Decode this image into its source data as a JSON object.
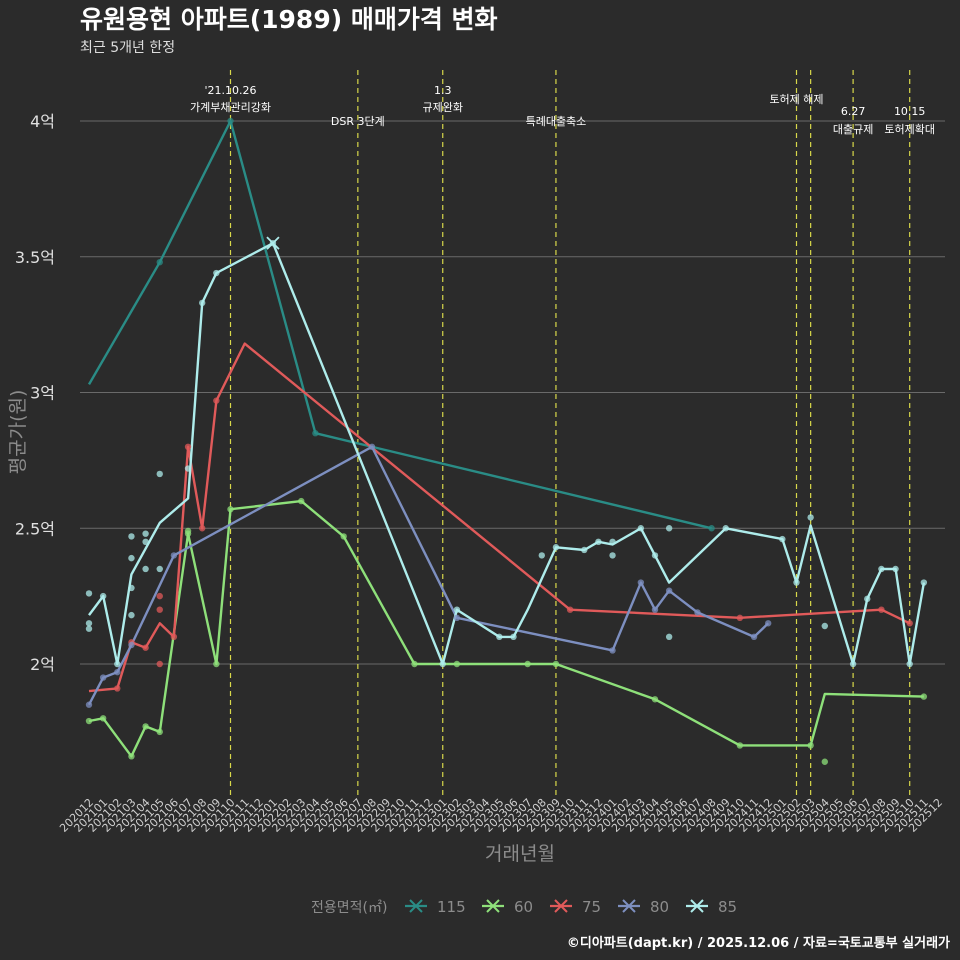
{
  "chart_data": {
    "type": "line",
    "title": "유원용현 아파트(1989) 매매가격 변화",
    "subtitle": "최근 5개년 한정",
    "xlabel": "거래년월",
    "ylabel": "평균가(원)",
    "credit": "©디아파트(dapt.kr) / 2025.12.06 / 자료=국토교통부 실거래가",
    "legend_title": "전용면적(㎡)",
    "legend_position": "bottom",
    "categories": [
      "202012",
      "202101",
      "202102",
      "202103",
      "202104",
      "202105",
      "202106",
      "202107",
      "202108",
      "202109",
      "202110",
      "202111",
      "202112",
      "202201",
      "202202",
      "202203",
      "202204",
      "202205",
      "202206",
      "202207",
      "202208",
      "202209",
      "202210",
      "202211",
      "202212",
      "202301",
      "202302",
      "202303",
      "202304",
      "202305",
      "202306",
      "202307",
      "202308",
      "202309",
      "202310",
      "202311",
      "202312",
      "202401",
      "202402",
      "202403",
      "202404",
      "202405",
      "202406",
      "202407",
      "202408",
      "202409",
      "202410",
      "202411",
      "202412",
      "202501",
      "202502",
      "202503",
      "202504",
      "202505",
      "202506",
      "202507",
      "202508",
      "202509",
      "202510",
      "202511",
      "202512"
    ],
    "y_ticks": [
      2.0,
      2.5,
      3.0,
      3.5,
      4.0
    ],
    "y_tick_labels": [
      "2억",
      "2.5억",
      "3억",
      "3.5억",
      "4억"
    ],
    "ylim": [
      1.53,
      4.25
    ],
    "y_unit": "억원",
    "series": [
      {
        "name": "115",
        "color": "#2a8c86",
        "points": [
          [
            "202012",
            3.03
          ],
          [
            "202105",
            3.48
          ],
          [
            "202110",
            4.0
          ],
          [
            "202204",
            2.85
          ],
          [
            "202408",
            2.5
          ]
        ],
        "scatter": [
          [
            "202105",
            3.48
          ],
          [
            "202110",
            4.0
          ],
          [
            "202204",
            2.85
          ],
          [
            "202408",
            2.5
          ]
        ]
      },
      {
        "name": "60",
        "color": "#8ee07a",
        "points": [
          [
            "202012",
            1.79
          ],
          [
            "202101",
            1.8
          ],
          [
            "202103",
            1.66
          ],
          [
            "202104",
            1.77
          ],
          [
            "202105",
            1.75
          ],
          [
            "202107",
            2.48
          ],
          [
            "202109",
            2.0
          ],
          [
            "202110",
            2.57
          ],
          [
            "202203",
            2.6
          ],
          [
            "202206",
            2.47
          ],
          [
            "202211",
            2.0
          ],
          [
            "202302",
            2.0
          ],
          [
            "202307",
            2.0
          ],
          [
            "202309",
            2.0
          ],
          [
            "202404",
            1.87
          ],
          [
            "202410",
            1.7
          ],
          [
            "202503",
            1.7
          ],
          [
            "202504",
            1.89
          ],
          [
            "202511",
            1.88
          ]
        ],
        "scatter": [
          [
            "202012",
            1.79
          ],
          [
            "202101",
            1.8
          ],
          [
            "202103",
            1.66
          ],
          [
            "202104",
            1.77
          ],
          [
            "202105",
            1.75
          ],
          [
            "202107",
            2.48
          ],
          [
            "202107",
            2.49
          ],
          [
            "202109",
            2.0
          ],
          [
            "202110",
            2.57
          ],
          [
            "202203",
            2.6
          ],
          [
            "202206",
            2.47
          ],
          [
            "202211",
            2.0
          ],
          [
            "202302",
            2.0
          ],
          [
            "202307",
            2.0
          ],
          [
            "202309",
            2.0
          ],
          [
            "202404",
            1.87
          ],
          [
            "202410",
            1.7
          ],
          [
            "202503",
            1.7
          ],
          [
            "202504",
            1.64
          ],
          [
            "202511",
            1.88
          ]
        ]
      },
      {
        "name": "75",
        "color": "#e05a5a",
        "points": [
          [
            "202012",
            1.9
          ],
          [
            "202102",
            1.91
          ],
          [
            "202103",
            2.08
          ],
          [
            "202104",
            2.06
          ],
          [
            "202105",
            2.15
          ],
          [
            "202106",
            2.1
          ],
          [
            "202107",
            2.8
          ],
          [
            "202108",
            2.5
          ],
          [
            "202109",
            2.97
          ],
          [
            "202111",
            3.18
          ],
          [
            "202310",
            2.2
          ],
          [
            "202410",
            2.17
          ],
          [
            "202508",
            2.2
          ],
          [
            "202510",
            2.15
          ]
        ],
        "scatter": [
          [
            "202102",
            1.91
          ],
          [
            "202103",
            2.08
          ],
          [
            "202104",
            2.06
          ],
          [
            "202105",
            2.25
          ],
          [
            "202105",
            2.2
          ],
          [
            "202105",
            2.0
          ],
          [
            "202106",
            2.1
          ],
          [
            "202107",
            2.8
          ],
          [
            "202108",
            2.5
          ],
          [
            "202109",
            2.97
          ],
          [
            "202310",
            2.2
          ],
          [
            "202410",
            2.17
          ],
          [
            "202508",
            2.2
          ],
          [
            "202510",
            2.15
          ]
        ]
      },
      {
        "name": "80",
        "color": "#7d8fc0",
        "points": [
          [
            "202012",
            1.85
          ],
          [
            "202101",
            1.95
          ],
          [
            "202102",
            1.97
          ],
          [
            "202103",
            2.07
          ],
          [
            "202106",
            2.4
          ],
          [
            "202208",
            2.8
          ],
          [
            "202302",
            2.17
          ],
          [
            "202401",
            2.05
          ],
          [
            "202403",
            2.3
          ],
          [
            "202404",
            2.2
          ],
          [
            "202405",
            2.27
          ],
          [
            "202407",
            2.19
          ],
          [
            "202411",
            2.1
          ],
          [
            "202412",
            2.15
          ]
        ],
        "scatter": [
          [
            "202012",
            1.85
          ],
          [
            "202101",
            1.95
          ],
          [
            "202102",
            1.97
          ],
          [
            "202103",
            2.07
          ],
          [
            "202106",
            2.4
          ],
          [
            "202208",
            2.8
          ],
          [
            "202302",
            2.17
          ],
          [
            "202401",
            2.05
          ],
          [
            "202403",
            2.3
          ],
          [
            "202404",
            2.2
          ],
          [
            "202405",
            2.27
          ],
          [
            "202407",
            2.19
          ],
          [
            "202411",
            2.1
          ],
          [
            "202412",
            2.15
          ]
        ]
      },
      {
        "name": "85",
        "color": "#aeeceb",
        "points": [
          [
            "202012",
            2.18
          ],
          [
            "202101",
            2.25
          ],
          [
            "202102",
            2.0
          ],
          [
            "202103",
            2.33
          ],
          [
            "202105",
            2.52
          ],
          [
            "202107",
            2.61
          ],
          [
            "202108",
            3.33
          ],
          [
            "202109",
            3.44
          ],
          [
            "202201",
            3.55
          ],
          [
            "202301",
            2.0
          ],
          [
            "202302",
            2.2
          ],
          [
            "202305",
            2.1
          ],
          [
            "202306",
            2.1
          ],
          [
            "202307",
            2.2
          ],
          [
            "202309",
            2.43
          ],
          [
            "202311",
            2.42
          ],
          [
            "202312",
            2.45
          ],
          [
            "202401",
            2.44
          ],
          [
            "202403",
            2.5
          ],
          [
            "202404",
            2.4
          ],
          [
            "202405",
            2.3
          ],
          [
            "202409",
            2.5
          ],
          [
            "202501",
            2.46
          ],
          [
            "202502",
            2.3
          ],
          [
            "202503",
            2.51
          ],
          [
            "202506",
            2.0
          ],
          [
            "202507",
            2.24
          ],
          [
            "202508",
            2.35
          ],
          [
            "202509",
            2.35
          ],
          [
            "202510",
            2.0
          ],
          [
            "202511",
            2.3
          ]
        ],
        "scatter": [
          [
            "202012",
            2.26
          ],
          [
            "202012",
            2.15
          ],
          [
            "202012",
            2.13
          ],
          [
            "202101",
            2.25
          ],
          [
            "202102",
            2.0
          ],
          [
            "202103",
            2.28
          ],
          [
            "202103",
            2.18
          ],
          [
            "202103",
            2.39
          ],
          [
            "202103",
            2.47
          ],
          [
            "202104",
            2.48
          ],
          [
            "202104",
            2.35
          ],
          [
            "202104",
            2.45
          ],
          [
            "202105",
            2.7
          ],
          [
            "202105",
            2.35
          ],
          [
            "202107",
            2.72
          ],
          [
            "202108",
            3.33
          ],
          [
            "202109",
            3.44
          ],
          [
            "202201",
            3.55
          ],
          [
            "202301",
            2.0
          ],
          [
            "202302",
            2.2
          ],
          [
            "202305",
            2.1
          ],
          [
            "202306",
            2.1
          ],
          [
            "202308",
            2.4
          ],
          [
            "202309",
            2.43
          ],
          [
            "202311",
            2.42
          ],
          [
            "202312",
            2.45
          ],
          [
            "202401",
            2.4
          ],
          [
            "202401",
            2.45
          ],
          [
            "202403",
            2.5
          ],
          [
            "202404",
            2.4
          ],
          [
            "202405",
            2.5
          ],
          [
            "202405",
            2.1
          ],
          [
            "202409",
            2.5
          ],
          [
            "202501",
            2.46
          ],
          [
            "202502",
            2.3
          ],
          [
            "202503",
            2.54
          ],
          [
            "202504",
            2.14
          ],
          [
            "202506",
            2.0
          ],
          [
            "202507",
            2.24
          ],
          [
            "202508",
            2.35
          ],
          [
            "202509",
            2.35
          ],
          [
            "202510",
            2.0
          ],
          [
            "202511",
            2.3
          ]
        ]
      }
    ],
    "annotations": [
      {
        "x": "202110",
        "lines": [
          "'21.10.26",
          "가계부채관리강화"
        ],
        "level": "high"
      },
      {
        "x": "202207",
        "lines": [
          "DSR 3단계"
        ],
        "level": "low"
      },
      {
        "x": "202301",
        "lines": [
          "1.3",
          "규제완화"
        ],
        "level": "high"
      },
      {
        "x": "202309",
        "lines": [
          "특례대출축소"
        ],
        "level": "low"
      },
      {
        "x": "202502",
        "lines": [
          "토허제 해제"
        ],
        "level": "mid"
      },
      {
        "x": "202503",
        "lines": [],
        "level": "none"
      },
      {
        "x": "202506",
        "lines": [
          "6.27",
          "대출규제"
        ],
        "level": "low"
      },
      {
        "x": "202510",
        "lines": [
          "10.15",
          "토허제확대"
        ],
        "level": "low"
      }
    ]
  }
}
